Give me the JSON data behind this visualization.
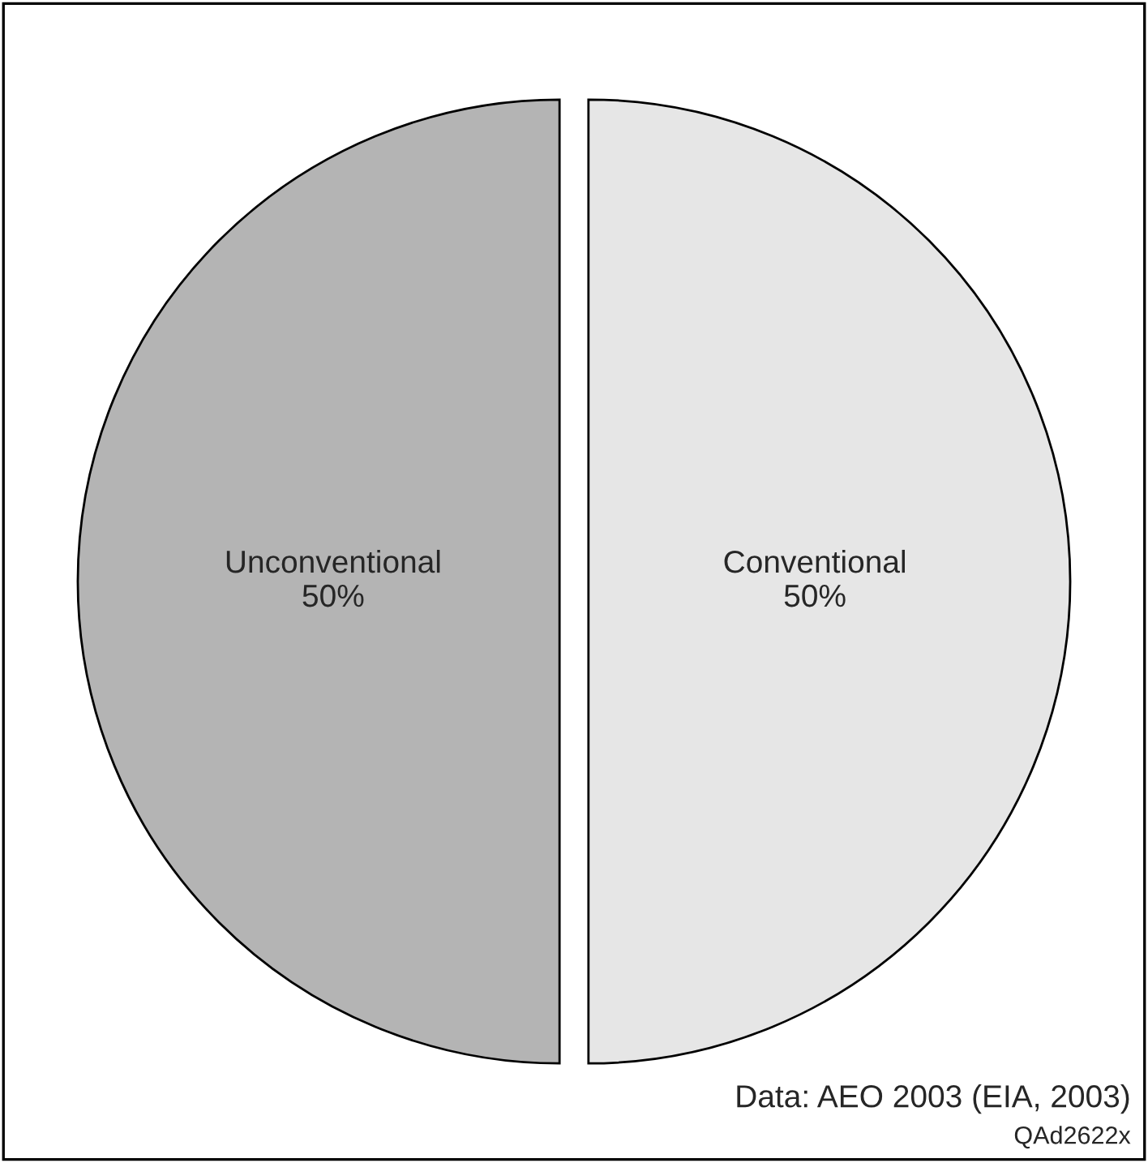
{
  "chart_data": {
    "type": "pie",
    "categories": [
      "Unconventional",
      "Conventional"
    ],
    "values": [
      50,
      50
    ],
    "colors": [
      "#b4b4b4",
      "#e6e6e6"
    ],
    "value_labels": [
      "50%",
      "50%"
    ],
    "annotations": [
      "Data: AEO 2003 (EIA, 2003)",
      "QAd2622x"
    ]
  }
}
